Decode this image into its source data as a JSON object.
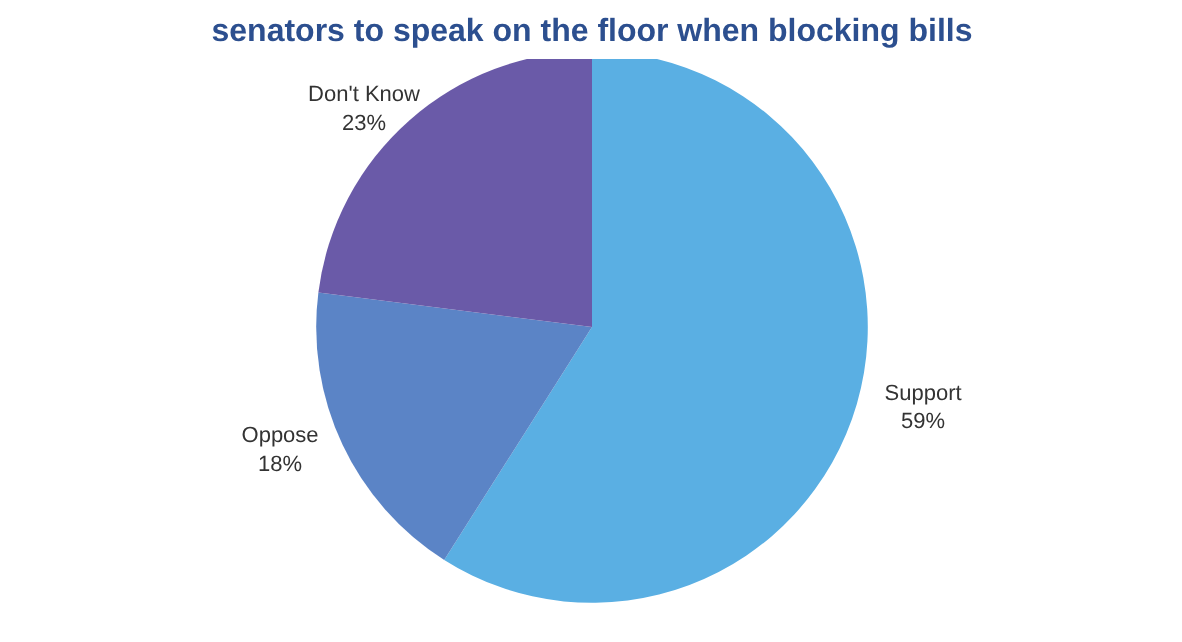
{
  "chart_data": {
    "type": "pie",
    "title": "senators to speak on the floor when blocking bills",
    "categories": [
      "Support",
      "Oppose",
      "Don't Know"
    ],
    "values": [
      59,
      18,
      23
    ],
    "value_labels": [
      "59%",
      "18%",
      "23%"
    ],
    "colors": [
      "#5aafe3",
      "#5b84c6",
      "#6a5aa8"
    ]
  }
}
